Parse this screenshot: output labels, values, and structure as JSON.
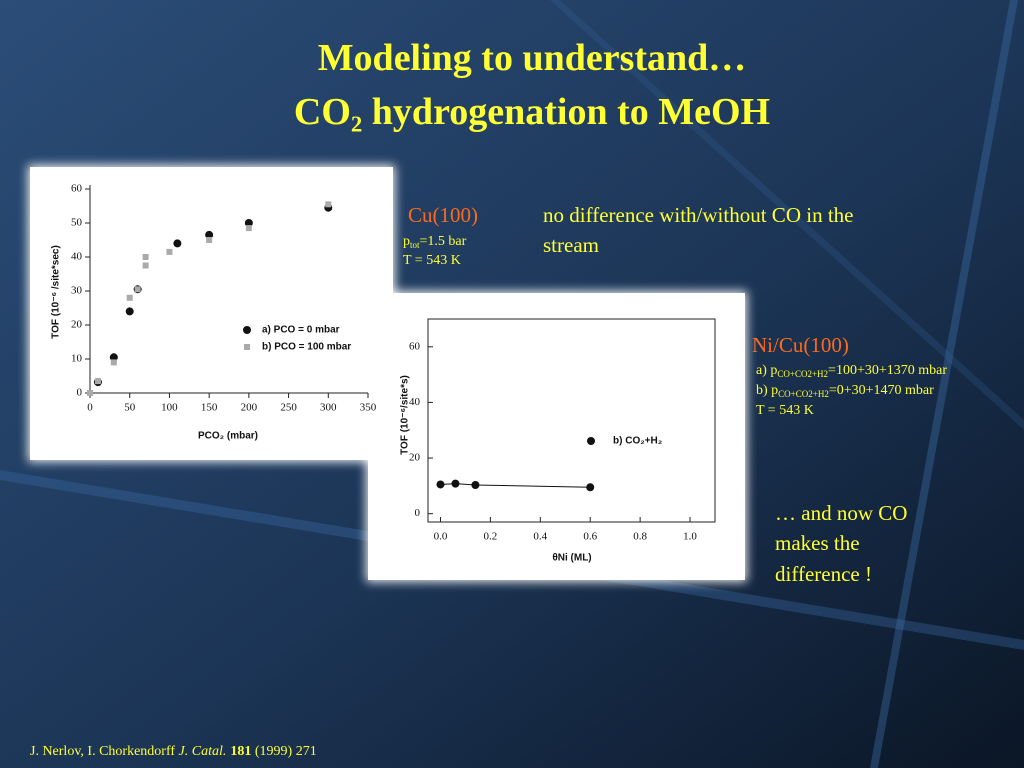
{
  "slide": {
    "title": [
      "Modeling to understand…",
      "CO₂ hydrogenation to MeOH"
    ],
    "cu_label": "Cu(100)",
    "cu_p": {
      "prefix": "p",
      "sub": "tot",
      "suffix": "=1.5 bar"
    },
    "cu_t": "T = 543 K",
    "cu_note": [
      "no difference with/without CO in the",
      "stream"
    ],
    "ni_label": "Ni/Cu(100)",
    "ni_a": {
      "prefix": "a) p",
      "sub": "CO+CO2+H2",
      "suffix": "=100+30+1370 mbar"
    },
    "ni_b": {
      "prefix": "b) p",
      "sub": "CO+CO2+H2",
      "suffix": "=0+30+1470 mbar"
    },
    "ni_t": "T = 543 K",
    "ni_note": [
      "… and now CO",
      "makes the",
      "difference !"
    ],
    "citation": {
      "authors": "J. Nerlov, I. Chorkendorff ",
      "journal": "J. Catal.",
      "volume": "181",
      "rest": " (1999) 271"
    }
  },
  "chart_data": [
    {
      "type": "scatter",
      "x_label": "PCO₂ (mbar)",
      "y_label": "TOF (10⁻⁶ /site*sec)",
      "xlim": [
        0,
        350
      ],
      "xticks": [
        0,
        50,
        100,
        150,
        200,
        250,
        300,
        350
      ],
      "ylim": [
        0,
        60
      ],
      "yticks": [
        0,
        10,
        20,
        30,
        40,
        50,
        60
      ],
      "series": [
        {
          "name": "a)  PCO = 0 mbar",
          "color": "#111111",
          "marker": "circle",
          "x": [
            10,
            30,
            50,
            60,
            110,
            150,
            200,
            300
          ],
          "values": [
            3.2,
            10.5,
            24,
            30.5,
            44,
            46.5,
            50,
            54.5
          ]
        },
        {
          "name": "b)  PCO = 100 mbar",
          "color": "#aaaaaa",
          "marker": "square",
          "x": [
            0,
            10,
            30,
            50,
            60,
            70,
            70,
            100,
            150,
            200,
            300
          ],
          "values": [
            0,
            3.5,
            9,
            28,
            30.5,
            37.5,
            40,
            41.5,
            45,
            48.5,
            55.5
          ]
        }
      ]
    },
    {
      "type": "scatter",
      "x_label": "θNi (ML)",
      "y_label": "TOF (10⁻⁶/site*s)",
      "xlim": [
        -0.05,
        1.1
      ],
      "xticks": [
        {
          "value": 0,
          "label": "0.0"
        },
        {
          "value": 0.2,
          "label": "0.2"
        },
        {
          "value": 0.4,
          "label": "0.4"
        },
        {
          "value": 0.6,
          "label": "0.6"
        },
        {
          "value": 0.8,
          "label": "0.8"
        },
        {
          "value": 1,
          "label": "1.0"
        }
      ],
      "ylim": [
        -3,
        70
      ],
      "yticks": [
        0,
        20,
        40,
        60
      ],
      "series": [
        {
          "name": "b) CO₂+H₂",
          "color": "#111111",
          "marker": "circle",
          "line": true,
          "x": [
            0,
            0.06,
            0.14,
            0.6
          ],
          "values": [
            10.5,
            10.8,
            10.3,
            9.5
          ]
        }
      ]
    }
  ]
}
